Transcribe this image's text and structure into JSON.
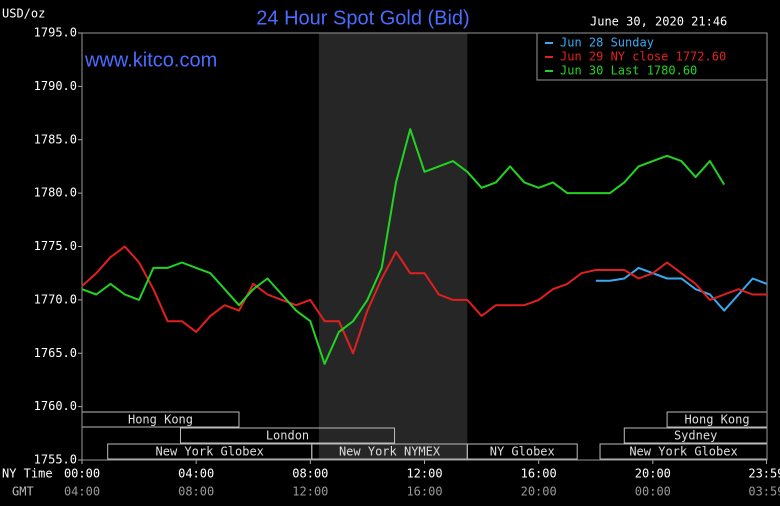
{
  "chart_data": {
    "type": "line",
    "title": "24 Hour Spot Gold (Bid)",
    "y_unit": "USD/oz",
    "timestamp": "June 30, 2020 21:46",
    "watermark": "www.kitco.com",
    "x_label": "NY Time",
    "x2_label": "GMT",
    "xlim": [
      0,
      24
    ],
    "xticks": [
      {
        "value": 0,
        "label": "00:00"
      },
      {
        "value": 4,
        "label": "04:00"
      },
      {
        "value": 8,
        "label": "08:00"
      },
      {
        "value": 12,
        "label": "12:00"
      },
      {
        "value": 16,
        "label": "16:00"
      },
      {
        "value": 20,
        "label": "20:00"
      },
      {
        "value": 23.98,
        "label": "23:59"
      }
    ],
    "x2ticks": [
      {
        "value": 0,
        "label": "04:00"
      },
      {
        "value": 4,
        "label": "08:00"
      },
      {
        "value": 8,
        "label": "12:00"
      },
      {
        "value": 12,
        "label": "16:00"
      },
      {
        "value": 16,
        "label": "20:00"
      },
      {
        "value": 20,
        "label": "00:00"
      },
      {
        "value": 23.98,
        "label": "03:59"
      }
    ],
    "ylim": [
      1755,
      1795
    ],
    "yticks": [
      {
        "value": 1755,
        "label": "1755.0"
      },
      {
        "value": 1760,
        "label": "1760.0"
      },
      {
        "value": 1765,
        "label": "1765.0"
      },
      {
        "value": 1770,
        "label": "1770.0"
      },
      {
        "value": 1775,
        "label": "1775.0"
      },
      {
        "value": 1780,
        "label": "1780.0"
      },
      {
        "value": 1785,
        "label": "1785.0"
      },
      {
        "value": 1790,
        "label": "1790.0"
      },
      {
        "value": 1795,
        "label": "1795.0"
      }
    ],
    "shaded_span": [
      8.3,
      13.5
    ],
    "sessions": [
      {
        "name": "Hong Kong",
        "start": 0,
        "end": 5.5,
        "row": 0
      },
      {
        "name": "Hong Kong",
        "start": 20.5,
        "end": 24,
        "row": 0
      },
      {
        "name": "London",
        "start": 3.45,
        "end": 10.95,
        "row": 1
      },
      {
        "name": "Sydney",
        "start": 19,
        "end": 24,
        "row": 1
      },
      {
        "name": "New York Globex",
        "start": 0.9,
        "end": 8.05,
        "row": 2
      },
      {
        "name": "New York NYMEX",
        "start": 8.05,
        "end": 13.5,
        "row": 2
      },
      {
        "name": "NY Globex",
        "start": 13.5,
        "end": 17.35,
        "row": 2
      },
      {
        "name": "New York Globex",
        "start": 18.15,
        "end": 24,
        "row": 2
      }
    ],
    "x": [
      0,
      0.5,
      1,
      1.5,
      2,
      2.5,
      3,
      3.5,
      4,
      4.5,
      5,
      5.5,
      6,
      6.5,
      7,
      7.5,
      8,
      8.5,
      9,
      9.5,
      10,
      10.5,
      11,
      11.5,
      12,
      12.5,
      13,
      13.5,
      14,
      14.5,
      15,
      15.5,
      16,
      16.5,
      17,
      17.5,
      18,
      18.5,
      19,
      19.5,
      20,
      20.5,
      21,
      21.5,
      22,
      22.5,
      23,
      23.5,
      24
    ],
    "series": [
      {
        "name": "Jun 28 Sunday",
        "color": "#3aaaf0",
        "values": [
          null,
          null,
          null,
          null,
          null,
          null,
          null,
          null,
          null,
          null,
          null,
          null,
          null,
          null,
          null,
          null,
          null,
          null,
          null,
          null,
          null,
          null,
          null,
          null,
          null,
          null,
          null,
          null,
          null,
          null,
          null,
          null,
          null,
          null,
          null,
          null,
          1771.8,
          1771.8,
          1772,
          1773,
          1772.5,
          1772,
          1772,
          1771,
          1770.5,
          1769,
          1770.5,
          1772,
          1771.5
        ]
      },
      {
        "name": "Jun 29 NY close 1772.60",
        "color": "#e02020",
        "values": [
          1771.3,
          1772.5,
          1774,
          1775,
          1773.5,
          1771,
          1768,
          1768,
          1767,
          1768.5,
          1769.5,
          1769,
          1771.5,
          1770.5,
          1770,
          1769.5,
          1770,
          1768,
          1768,
          1765,
          1769,
          1772,
          1774.5,
          1772.5,
          1772.5,
          1770.5,
          1770,
          1770,
          1768.5,
          1769.5,
          1769.5,
          1769.5,
          1770,
          1771,
          1771.5,
          1772.5,
          1772.8,
          1772.8,
          1772.8,
          1772,
          1772.5,
          1773.5,
          1772.5,
          1771.5,
          1770,
          1770.5,
          1771,
          1770.5,
          1770.5
        ]
      },
      {
        "name": "Jun 30 Last 1780.60",
        "color": "#22d322",
        "values": [
          1771,
          1770.5,
          1771.5,
          1770.5,
          1770,
          1773,
          1773,
          1773.5,
          1773,
          1772.5,
          1771,
          1769.5,
          1771,
          1772,
          1770.5,
          1769,
          1768,
          1764,
          1767,
          1768,
          1770,
          1773,
          1781,
          1786,
          1782,
          1782.5,
          1783,
          1782,
          1780.5,
          1781,
          1782.5,
          1781,
          1780.5,
          1781,
          1780,
          1780,
          1780,
          1780,
          1781,
          1782.5,
          1783,
          1783.5,
          1783,
          1781.5,
          1783,
          1780.8,
          null,
          null,
          null
        ]
      }
    ]
  }
}
